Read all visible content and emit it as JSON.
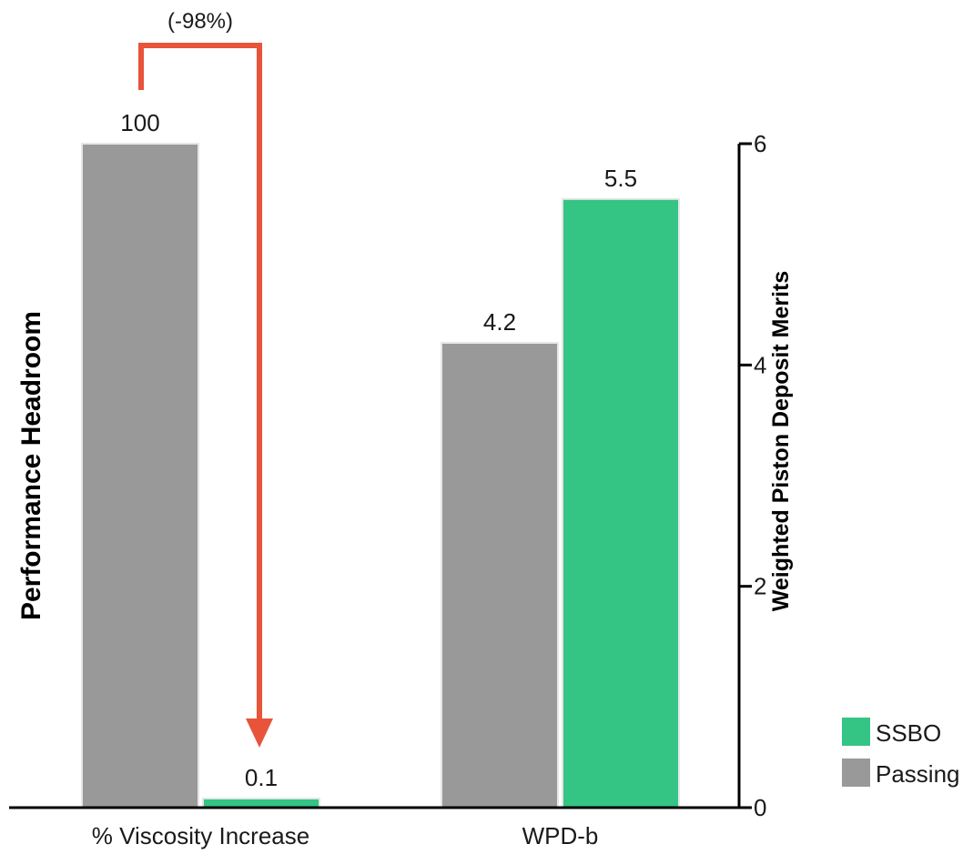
{
  "chart_data": {
    "type": "bar",
    "categories": [
      "% Viscosity Increase",
      "WPD-b"
    ],
    "series": [
      {
        "name": "Passing",
        "values": [
          100,
          4.2
        ],
        "labels": [
          "100",
          "4.2"
        ],
        "color": "#999999"
      },
      {
        "name": "SSBO",
        "values": [
          0.1,
          5.5
        ],
        "labels": [
          "0.1",
          "5.5"
        ],
        "color": "#34c484"
      }
    ],
    "ylabel_left": "Performance Headroom",
    "ylabel_right": "Weighted Piston Deposit Merits",
    "right_axis": {
      "ylim": [
        0,
        6
      ],
      "ticks": [
        "0",
        "2",
        "4",
        "6"
      ]
    },
    "annotation": {
      "text": "(-98%)",
      "color": "#e8533a"
    },
    "legend": {
      "position": "bottom-right",
      "order": [
        "SSBO",
        "Passing"
      ]
    },
    "grid": false
  }
}
